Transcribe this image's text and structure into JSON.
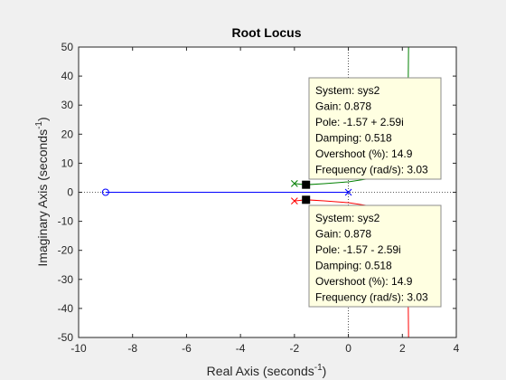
{
  "chart_data": {
    "type": "scatter",
    "title": "Root Locus",
    "xlabel_main": "Real Axis (seconds",
    "xlabel_sup": "-1",
    "xlabel_close": ")",
    "ylabel_main": "Imaginary Axis (seconds",
    "ylabel_sup": "-1",
    "ylabel_close": ")",
    "xlim": [
      -10,
      4
    ],
    "ylim": [
      -50,
      50
    ],
    "xticks": [
      -10,
      -8,
      -6,
      -4,
      -2,
      0,
      2,
      4
    ],
    "yticks": [
      -50,
      -40,
      -30,
      -20,
      -10,
      0,
      10,
      20,
      30,
      40,
      50
    ],
    "grid": false,
    "colors": {
      "blue": "#0000ff",
      "green": "#008000",
      "red": "#ff0000",
      "axes_bg": "#ffffff",
      "fig_bg": "#f0f0f0",
      "datatip_bg": "#ffffe1"
    },
    "zeros": [
      {
        "re": -9,
        "im": 0
      }
    ],
    "poles": [
      {
        "re": -2,
        "im": 3
      },
      {
        "re": -2,
        "im": -3
      },
      {
        "re": 0,
        "im": 0
      }
    ],
    "branches": [
      {
        "color": "blue",
        "points": [
          [
            -9,
            0
          ],
          [
            0,
            0
          ]
        ]
      },
      {
        "color": "green",
        "points": [
          [
            -2,
            3
          ],
          [
            -1.57,
            2.59
          ],
          [
            -0.9,
            2.95
          ],
          [
            0,
            3.6
          ],
          [
            1.0,
            5.0
          ],
          [
            1.7,
            8.0
          ],
          [
            2.05,
            14
          ],
          [
            2.18,
            25
          ],
          [
            2.22,
            40
          ],
          [
            2.23,
            50
          ]
        ]
      },
      {
        "color": "red",
        "points": [
          [
            -2,
            -3
          ],
          [
            -1.57,
            -2.59
          ],
          [
            -0.9,
            -2.95
          ],
          [
            0,
            -3.6
          ],
          [
            1.0,
            -5.0
          ],
          [
            1.7,
            -8.0
          ],
          [
            2.05,
            -14
          ],
          [
            2.18,
            -25
          ],
          [
            2.22,
            -40
          ],
          [
            2.23,
            -50
          ]
        ]
      }
    ],
    "markers": [
      {
        "re": -1.57,
        "im": 2.59
      },
      {
        "re": -1.57,
        "im": -2.59
      }
    ],
    "datatips": [
      {
        "lines": [
          "System: sys2",
          "Gain: 0.878",
          "Pole: -1.57 + 2.59i",
          "Damping: 0.518",
          "Overshoot (%): 14.9",
          "Frequency (rad/s): 3.03"
        ]
      },
      {
        "lines": [
          "System: sys2",
          "Gain: 0.878",
          "Pole: -1.57 - 2.59i",
          "Damping: 0.518",
          "Overshoot (%): 14.9",
          "Frequency (rad/s): 3.03"
        ]
      }
    ]
  }
}
